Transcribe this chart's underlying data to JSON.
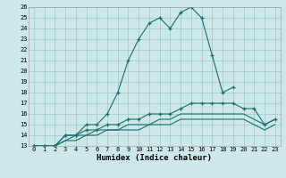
{
  "title": "",
  "xlabel": "Humidex (Indice chaleur)",
  "background_color": "#cce8e8",
  "grid_color": "#aacccc",
  "line_color": "#1a6e6e",
  "series": [
    {
      "x": [
        0,
        1,
        2,
        3,
        4,
        5,
        6,
        7,
        8,
        9,
        10,
        11,
        12,
        13,
        14,
        15,
        16,
        17,
        18,
        19
      ],
      "y": [
        13,
        13,
        13,
        14,
        14,
        15,
        15,
        16,
        18,
        21,
        23,
        24.5,
        25,
        24,
        25.5,
        26,
        25,
        21.5,
        18,
        18.5
      ],
      "marker": true
    },
    {
      "x": [
        0,
        1,
        2,
        3,
        4,
        5,
        6,
        7,
        8,
        9,
        10,
        11,
        12,
        13,
        14,
        15,
        16,
        17,
        18,
        19,
        20,
        21,
        22,
        23
      ],
      "y": [
        13,
        13,
        13,
        14,
        14,
        14.5,
        14.5,
        15,
        15,
        15.5,
        15.5,
        16,
        16,
        16,
        16.5,
        17,
        17,
        17,
        17,
        17,
        16.5,
        16.5,
        15,
        15.5
      ],
      "marker": true
    },
    {
      "x": [
        0,
        1,
        2,
        3,
        4,
        5,
        6,
        7,
        8,
        9,
        10,
        11,
        12,
        13,
        14,
        15,
        16,
        17,
        18,
        19,
        20,
        21,
        22,
        23
      ],
      "y": [
        13,
        13,
        13,
        13.5,
        14,
        14,
        14.5,
        14.5,
        14.5,
        15,
        15,
        15,
        15.5,
        15.5,
        16,
        16,
        16,
        16,
        16,
        16,
        16,
        15.5,
        15,
        15.5
      ],
      "marker": false
    },
    {
      "x": [
        0,
        1,
        2,
        3,
        4,
        5,
        6,
        7,
        8,
        9,
        10,
        11,
        12,
        13,
        14,
        15,
        16,
        17,
        18,
        19,
        20,
        21,
        22,
        23
      ],
      "y": [
        13,
        13,
        13,
        13.5,
        13.5,
        14,
        14,
        14.5,
        14.5,
        14.5,
        14.5,
        15,
        15,
        15,
        15.5,
        15.5,
        15.5,
        15.5,
        15.5,
        15.5,
        15.5,
        15,
        14.5,
        15
      ],
      "marker": false
    }
  ],
  "xlim": [
    -0.5,
    23.5
  ],
  "ylim": [
    13,
    26
  ],
  "yticks": [
    13,
    14,
    15,
    16,
    17,
    18,
    19,
    20,
    21,
    22,
    23,
    24,
    25,
    26
  ],
  "xticks": [
    0,
    1,
    2,
    3,
    4,
    5,
    6,
    7,
    8,
    9,
    10,
    11,
    12,
    13,
    14,
    15,
    16,
    17,
    18,
    19,
    20,
    21,
    22,
    23
  ],
  "tick_fontsize": 5.0,
  "xlabel_fontsize": 6.5
}
